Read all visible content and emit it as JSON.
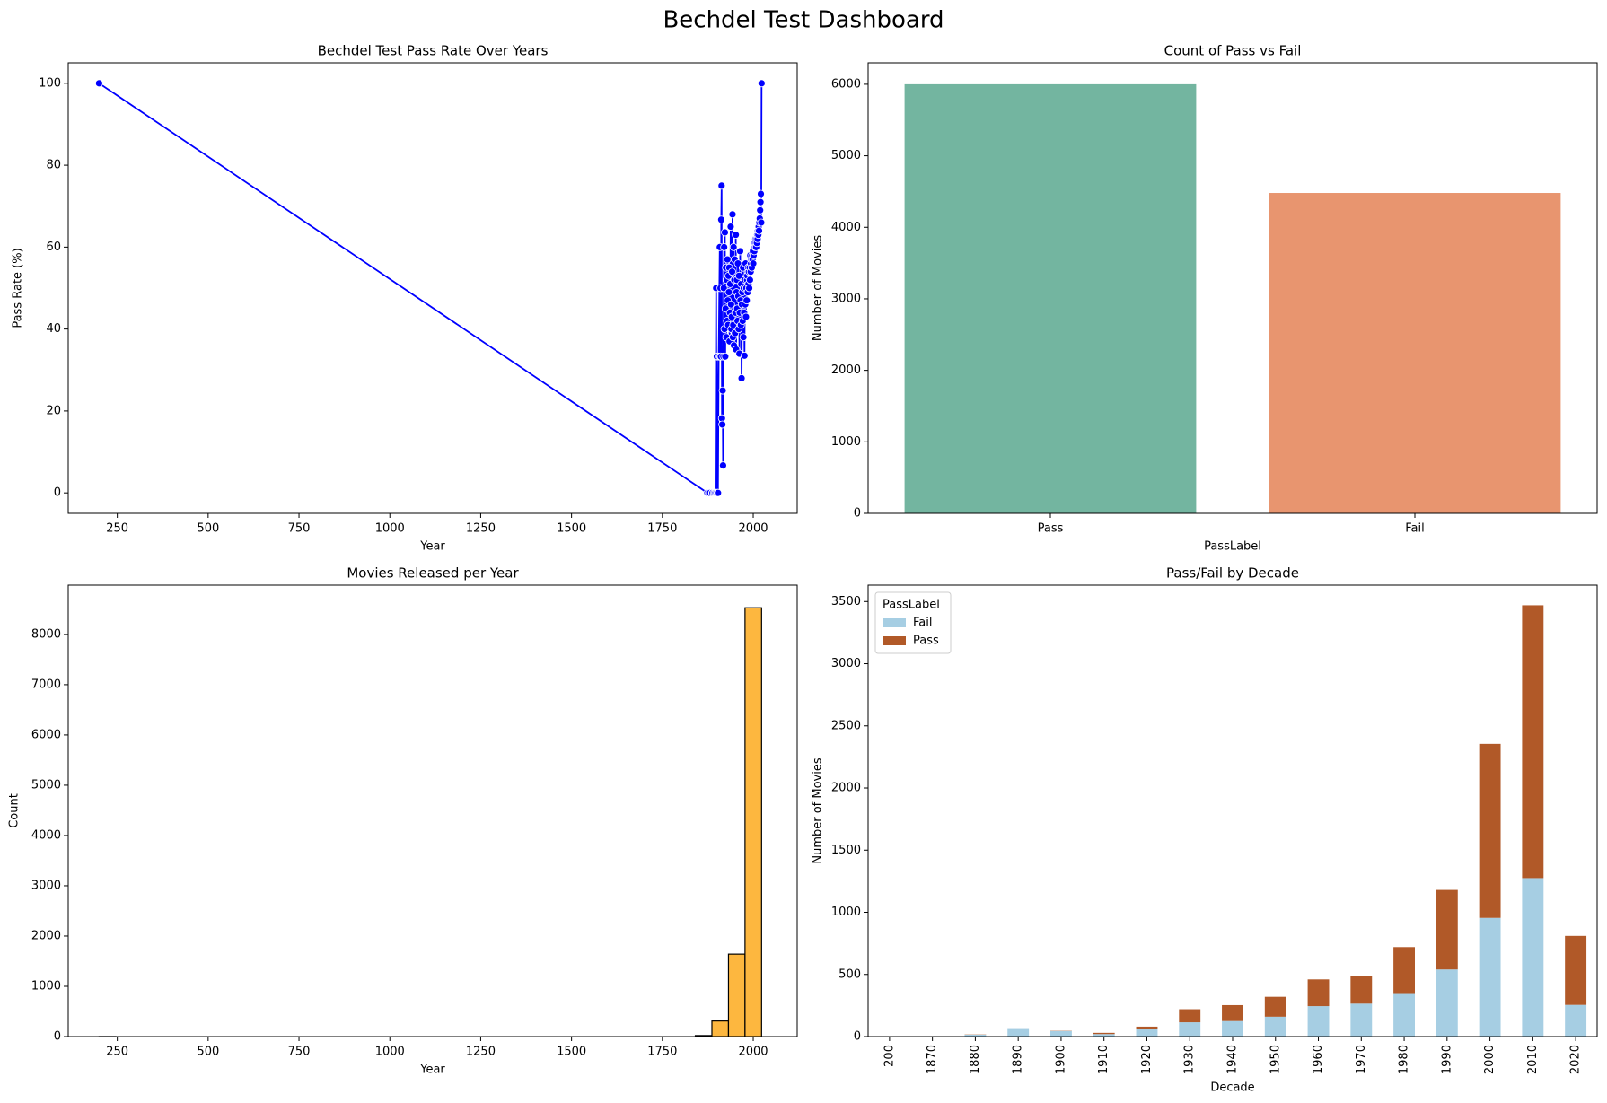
{
  "title": "Bechdel Test Dashboard",
  "chart_data": [
    {
      "type": "line",
      "title": "Bechdel Test Pass Rate Over Years",
      "x_label": "Year",
      "y_label": "Pass Rate (%)",
      "color": "blue",
      "x": [
        200,
        1874,
        1878,
        1881,
        1887,
        1888,
        1892,
        1895,
        1896,
        1898,
        1899,
        1900,
        1902,
        1903,
        1905,
        1908,
        1909,
        1910,
        1911,
        1912,
        1913,
        1914,
        1915,
        1916,
        1917,
        1918,
        1919,
        1920,
        1921,
        1922,
        1923,
        1924,
        1925,
        1926,
        1927,
        1928,
        1929,
        1930,
        1931,
        1932,
        1933,
        1934,
        1935,
        1936,
        1937,
        1938,
        1939,
        1940,
        1941,
        1942,
        1943,
        1944,
        1945,
        1946,
        1947,
        1948,
        1949,
        1950,
        1951,
        1952,
        1953,
        1954,
        1955,
        1956,
        1957,
        1958,
        1959,
        1960,
        1961,
        1962,
        1963,
        1964,
        1965,
        1966,
        1967,
        1968,
        1969,
        1970,
        1971,
        1972,
        1973,
        1974,
        1975,
        1976,
        1977,
        1978,
        1979,
        1980,
        1981,
        1982,
        1983,
        1984,
        1985,
        1986,
        1987,
        1988,
        1989,
        1990,
        1991,
        1992,
        1993,
        1994,
        1995,
        1996,
        1997,
        1998,
        1999,
        2000,
        2001,
        2002,
        2003,
        2004,
        2005,
        2006,
        2007,
        2008,
        2009,
        2010,
        2011,
        2012,
        2013,
        2014,
        2015,
        2016,
        2017,
        2018,
        2019,
        2020,
        2021,
        2022,
        2023
      ],
      "values": [
        100,
        0,
        0,
        0,
        0,
        0,
        0,
        0,
        0,
        50,
        0,
        33.3,
        0,
        0,
        33.3,
        60,
        33.3,
        50,
        33.3,
        66.7,
        75,
        18.2,
        16.7,
        25,
        6.7,
        33.3,
        50,
        60,
        40,
        63.6,
        33.3,
        45,
        55,
        38,
        52,
        42,
        57,
        47,
        41,
        53,
        49,
        55,
        37,
        44,
        51,
        65,
        46,
        40,
        43,
        54,
        68,
        38,
        41,
        60,
        36,
        52,
        57,
        39,
        44,
        63,
        35,
        49,
        52,
        45,
        42,
        56,
        48,
        40,
        53,
        34,
        44,
        59,
        47,
        41,
        51,
        28,
        46,
        49,
        42,
        55,
        38,
        50,
        44,
        33.5,
        52,
        46,
        56,
        43,
        50,
        47,
        52,
        53,
        49,
        55,
        51,
        54,
        50,
        55,
        52,
        58,
        54,
        56,
        57,
        55,
        58,
        57,
        59,
        56,
        58,
        60,
        59,
        61,
        60,
        62,
        61,
        60,
        62,
        61,
        63,
        62,
        64,
        63,
        65,
        64,
        66,
        67,
        69,
        71,
        73,
        66,
        100
      ],
      "xlim": [
        115,
        2121
      ],
      "xticks": [
        250,
        500,
        750,
        1000,
        1250,
        1500,
        1750,
        2000
      ],
      "ylim": [
        -5,
        105
      ],
      "yticks": [
        0,
        20,
        40,
        60,
        80,
        100
      ]
    },
    {
      "type": "bar",
      "title": "Count of Pass vs Fail",
      "x_label": "PassLabel",
      "y_label": "Number of Movies",
      "categories": [
        "Pass",
        "Fail"
      ],
      "values": [
        6000,
        4480
      ],
      "colors": [
        "#73b5a0",
        "#e8956f"
      ],
      "ylim": [
        0,
        6300
      ],
      "yticks": [
        0,
        1000,
        2000,
        3000,
        4000,
        5000,
        6000
      ]
    },
    {
      "type": "histogram",
      "title": "Movies Released per Year",
      "x_label": "Year",
      "y_label": "Count",
      "color": "#fdb73f",
      "bins": [
        200,
        245.6,
        291.2,
        336.7,
        382.3,
        427.9,
        473.5,
        519.0,
        564.6,
        610.2,
        655.8,
        701.3,
        746.9,
        792.5,
        838.1,
        883.6,
        929.2,
        974.8,
        1020.4,
        1065.9,
        1111.5,
        1157.1,
        1202.7,
        1248.2,
        1293.8,
        1339.4,
        1385.0,
        1430.5,
        1476.1,
        1521.7,
        1567.3,
        1612.8,
        1658.4,
        1704.0,
        1749.6,
        1795.1,
        1840.7,
        1886.3,
        1931.9,
        1977.4,
        2023
      ],
      "values": [
        1,
        0,
        0,
        0,
        0,
        0,
        0,
        0,
        0,
        0,
        0,
        0,
        0,
        0,
        0,
        0,
        0,
        0,
        0,
        0,
        0,
        0,
        0,
        0,
        0,
        0,
        0,
        0,
        0,
        0,
        0,
        0,
        0,
        0,
        0,
        0,
        20,
        310,
        1640,
        8530
      ],
      "xlim": [
        115,
        2121
      ],
      "xticks": [
        250,
        500,
        750,
        1000,
        1250,
        1500,
        1750,
        2000
      ],
      "ylim": [
        0,
        8980
      ],
      "yticks": [
        0,
        1000,
        2000,
        3000,
        4000,
        5000,
        6000,
        7000,
        8000
      ]
    },
    {
      "type": "stacked_bar",
      "title": "Pass/Fail by Decade",
      "x_label": "Decade",
      "y_label": "Number of Movies",
      "legend_title": "PassLabel",
      "legend": "upper left",
      "categories": [
        "200",
        "1870",
        "1880",
        "1890",
        "1900",
        "1910",
        "1920",
        "1930",
        "1940",
        "1950",
        "1960",
        "1970",
        "1980",
        "1990",
        "2000",
        "2010",
        "2020"
      ],
      "series": [
        {
          "name": "Fail",
          "color": "#a6cee3",
          "values": [
            1,
            1,
            15,
            68,
            45,
            20,
            60,
            115,
            125,
            160,
            245,
            265,
            350,
            540,
            955,
            1275,
            255
          ]
        },
        {
          "name": "Pass",
          "color": "#b15928",
          "values": [
            0,
            0,
            2,
            0,
            2,
            10,
            20,
            105,
            128,
            160,
            215,
            225,
            370,
            640,
            1400,
            2195,
            555
          ]
        }
      ],
      "ylim": [
        0,
        3632
      ],
      "yticks": [
        0,
        500,
        1000,
        1500,
        2000,
        2500,
        3000,
        3500
      ]
    }
  ]
}
